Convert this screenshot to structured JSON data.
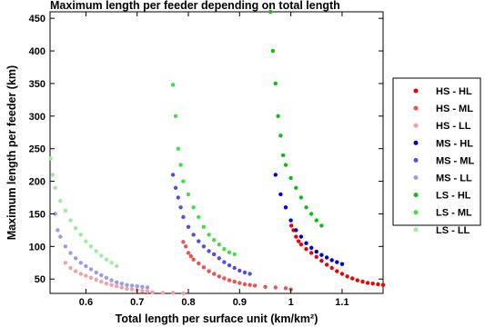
{
  "chart_data": {
    "type": "scatter",
    "title": "Maximum length per feeder depending on total length",
    "xlabel": "Total length per surface unit (km/km²)",
    "ylabel": "Maximum length per feeder (km)",
    "xlim": [
      0.53,
      1.18
    ],
    "ylim": [
      28,
      460
    ],
    "x_ticks": [
      0.6,
      0.7,
      0.8,
      0.9,
      1.0,
      1.1
    ],
    "x_tick_labels": [
      "0.6",
      "0.7",
      "0.8",
      "0.9",
      "1",
      "1.1"
    ],
    "y_ticks": [
      50,
      100,
      150,
      200,
      250,
      300,
      350,
      400,
      450
    ],
    "y_tick_labels": [
      "50",
      "100",
      "150",
      "200",
      "250",
      "300",
      "350",
      "400",
      "450"
    ],
    "grid": false,
    "legend_position": "right",
    "series": [
      {
        "name": "HS - HL",
        "color": "#ee0000",
        "points": [
          [
            1.001,
            132
          ],
          [
            1.005,
            125
          ],
          [
            1.01,
            115
          ],
          [
            1.015,
            108
          ],
          [
            1.02,
            103
          ],
          [
            1.03,
            96
          ],
          [
            1.04,
            90
          ],
          [
            1.05,
            84
          ],
          [
            1.06,
            78
          ],
          [
            1.07,
            72
          ],
          [
            1.08,
            67
          ],
          [
            1.09,
            62
          ],
          [
            1.1,
            58
          ],
          [
            1.11,
            54
          ],
          [
            1.12,
            51
          ],
          [
            1.13,
            48
          ],
          [
            1.14,
            46
          ],
          [
            1.15,
            44
          ],
          [
            1.16,
            43
          ],
          [
            1.17,
            42
          ],
          [
            1.18,
            41
          ]
        ]
      },
      {
        "name": "HS - ML",
        "color": "#f05050",
        "points": [
          [
            0.79,
            107
          ],
          [
            0.795,
            100
          ],
          [
            0.8,
            90
          ],
          [
            0.805,
            85
          ],
          [
            0.81,
            80
          ],
          [
            0.82,
            74
          ],
          [
            0.83,
            68
          ],
          [
            0.84,
            62
          ],
          [
            0.85,
            58
          ],
          [
            0.86,
            54
          ],
          [
            0.87,
            51
          ],
          [
            0.88,
            48
          ],
          [
            0.89,
            46
          ],
          [
            0.9,
            44
          ],
          [
            0.91,
            42
          ],
          [
            0.92,
            41
          ],
          [
            0.93,
            40
          ],
          [
            0.95,
            38
          ],
          [
            0.97,
            37
          ],
          [
            0.99,
            36
          ],
          [
            1.0,
            34
          ]
        ]
      },
      {
        "name": "HS - LL",
        "color": "#f4a0a0",
        "points": [
          [
            0.56,
            75
          ],
          [
            0.57,
            67
          ],
          [
            0.58,
            62
          ],
          [
            0.59,
            58
          ],
          [
            0.6,
            55
          ],
          [
            0.61,
            52
          ],
          [
            0.62,
            49
          ],
          [
            0.63,
            46
          ],
          [
            0.64,
            43
          ],
          [
            0.65,
            41
          ],
          [
            0.66,
            39
          ],
          [
            0.67,
            37
          ],
          [
            0.68,
            35
          ],
          [
            0.69,
            34
          ],
          [
            0.7,
            33
          ],
          [
            0.71,
            32
          ],
          [
            0.72,
            31
          ],
          [
            0.73,
            30
          ],
          [
            0.75,
            29
          ],
          [
            0.77,
            29
          ],
          [
            0.79,
            28
          ]
        ]
      },
      {
        "name": "MS - HL",
        "color": "#0000cc",
        "points": [
          [
            0.97,
            210
          ],
          [
            0.98,
            180
          ],
          [
            0.99,
            160
          ],
          [
            1.0,
            140
          ],
          [
            1.01,
            125
          ],
          [
            1.02,
            115
          ],
          [
            1.03,
            105
          ],
          [
            1.04,
            98
          ],
          [
            1.05,
            92
          ],
          [
            1.06,
            87
          ],
          [
            1.07,
            83
          ],
          [
            1.08,
            79
          ],
          [
            1.09,
            76
          ],
          [
            1.1,
            73
          ]
        ]
      },
      {
        "name": "MS - ML",
        "color": "#5050dd",
        "points": [
          [
            0.77,
            210
          ],
          [
            0.775,
            190
          ],
          [
            0.78,
            175
          ],
          [
            0.785,
            160
          ],
          [
            0.79,
            145
          ],
          [
            0.8,
            130
          ],
          [
            0.81,
            118
          ],
          [
            0.82,
            108
          ],
          [
            0.83,
            100
          ],
          [
            0.84,
            93
          ],
          [
            0.85,
            88
          ],
          [
            0.86,
            82
          ],
          [
            0.87,
            76
          ],
          [
            0.88,
            71
          ],
          [
            0.89,
            67
          ],
          [
            0.9,
            63
          ],
          [
            0.91,
            60
          ],
          [
            0.92,
            58
          ]
        ]
      },
      {
        "name": "MS - LL",
        "color": "#9a9aee",
        "points": [
          [
            0.54,
            150
          ],
          [
            0.545,
            125
          ],
          [
            0.55,
            115
          ],
          [
            0.56,
            100
          ],
          [
            0.57,
            90
          ],
          [
            0.58,
            82
          ],
          [
            0.59,
            75
          ],
          [
            0.6,
            70
          ],
          [
            0.61,
            65
          ],
          [
            0.62,
            60
          ],
          [
            0.63,
            56
          ],
          [
            0.64,
            52
          ],
          [
            0.65,
            48
          ],
          [
            0.66,
            45
          ],
          [
            0.67,
            43
          ],
          [
            0.68,
            41
          ],
          [
            0.69,
            40
          ],
          [
            0.7,
            39
          ],
          [
            0.71,
            38
          ],
          [
            0.72,
            37
          ]
        ]
      },
      {
        "name": "LS - HL",
        "color": "#11bb11",
        "points": [
          [
            0.96,
            460
          ],
          [
            0.965,
            400
          ],
          [
            0.97,
            350
          ],
          [
            0.975,
            300
          ],
          [
            0.98,
            270
          ],
          [
            0.985,
            240
          ],
          [
            0.99,
            225
          ],
          [
            1.0,
            205
          ],
          [
            1.01,
            190
          ],
          [
            1.02,
            175
          ],
          [
            1.03,
            160
          ],
          [
            1.04,
            150
          ],
          [
            1.05,
            140
          ],
          [
            1.06,
            132
          ]
        ]
      },
      {
        "name": "LS - ML",
        "color": "#44dd44",
        "points": [
          [
            0.77,
            348
          ],
          [
            0.775,
            300
          ],
          [
            0.78,
            250
          ],
          [
            0.785,
            225
          ],
          [
            0.79,
            200
          ],
          [
            0.8,
            180
          ],
          [
            0.81,
            160
          ],
          [
            0.82,
            145
          ],
          [
            0.83,
            130
          ],
          [
            0.84,
            118
          ],
          [
            0.85,
            110
          ],
          [
            0.86,
            103
          ],
          [
            0.87,
            96
          ],
          [
            0.88,
            91
          ],
          [
            0.89,
            88
          ]
        ]
      },
      {
        "name": "LS - LL",
        "color": "#99ee99",
        "points": [
          [
            0.531,
            235
          ],
          [
            0.535,
            210
          ],
          [
            0.54,
            190
          ],
          [
            0.55,
            170
          ],
          [
            0.56,
            155
          ],
          [
            0.57,
            140
          ],
          [
            0.58,
            128
          ],
          [
            0.59,
            118
          ],
          [
            0.6,
            108
          ],
          [
            0.61,
            100
          ],
          [
            0.62,
            93
          ],
          [
            0.63,
            86
          ],
          [
            0.64,
            80
          ],
          [
            0.65,
            75
          ],
          [
            0.66,
            70
          ]
        ]
      }
    ]
  }
}
